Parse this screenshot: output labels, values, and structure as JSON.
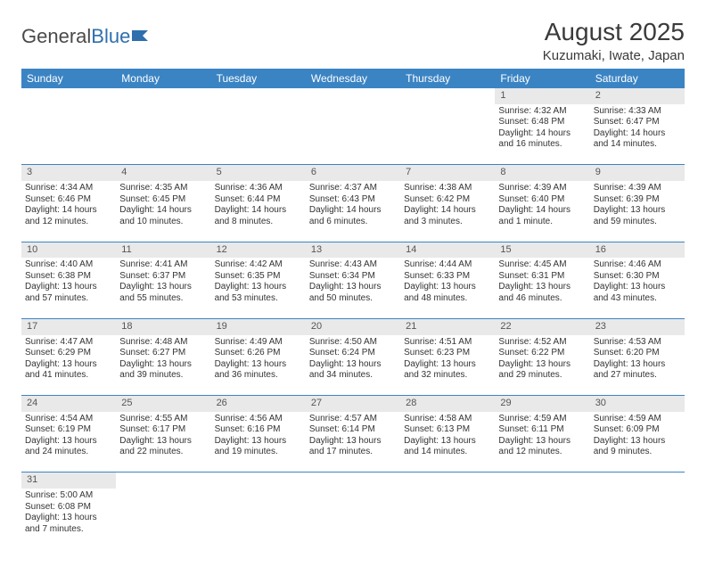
{
  "logo": {
    "text_a": "General",
    "text_b": "Blue"
  },
  "title": "August 2025",
  "location": "Kuzumaki, Iwate, Japan",
  "colors": {
    "header_bg": "#3b84c4",
    "header_fg": "#ffffff",
    "daynum_bg": "#e9e9e9",
    "text": "#333333",
    "rule": "#3b84c4",
    "page_bg": "#ffffff"
  },
  "typography": {
    "title_fontsize": 28,
    "location_fontsize": 15,
    "header_fontsize": 12,
    "cell_fontsize": 10
  },
  "day_headers": [
    "Sunday",
    "Monday",
    "Tuesday",
    "Wednesday",
    "Thursday",
    "Friday",
    "Saturday"
  ],
  "weeks": [
    [
      null,
      null,
      null,
      null,
      null,
      {
        "n": "1",
        "sunrise": "Sunrise: 4:32 AM",
        "sunset": "Sunset: 6:48 PM",
        "day1": "Daylight: 14 hours",
        "day2": "and 16 minutes."
      },
      {
        "n": "2",
        "sunrise": "Sunrise: 4:33 AM",
        "sunset": "Sunset: 6:47 PM",
        "day1": "Daylight: 14 hours",
        "day2": "and 14 minutes."
      }
    ],
    [
      {
        "n": "3",
        "sunrise": "Sunrise: 4:34 AM",
        "sunset": "Sunset: 6:46 PM",
        "day1": "Daylight: 14 hours",
        "day2": "and 12 minutes."
      },
      {
        "n": "4",
        "sunrise": "Sunrise: 4:35 AM",
        "sunset": "Sunset: 6:45 PM",
        "day1": "Daylight: 14 hours",
        "day2": "and 10 minutes."
      },
      {
        "n": "5",
        "sunrise": "Sunrise: 4:36 AM",
        "sunset": "Sunset: 6:44 PM",
        "day1": "Daylight: 14 hours",
        "day2": "and 8 minutes."
      },
      {
        "n": "6",
        "sunrise": "Sunrise: 4:37 AM",
        "sunset": "Sunset: 6:43 PM",
        "day1": "Daylight: 14 hours",
        "day2": "and 6 minutes."
      },
      {
        "n": "7",
        "sunrise": "Sunrise: 4:38 AM",
        "sunset": "Sunset: 6:42 PM",
        "day1": "Daylight: 14 hours",
        "day2": "and 3 minutes."
      },
      {
        "n": "8",
        "sunrise": "Sunrise: 4:39 AM",
        "sunset": "Sunset: 6:40 PM",
        "day1": "Daylight: 14 hours",
        "day2": "and 1 minute."
      },
      {
        "n": "9",
        "sunrise": "Sunrise: 4:39 AM",
        "sunset": "Sunset: 6:39 PM",
        "day1": "Daylight: 13 hours",
        "day2": "and 59 minutes."
      }
    ],
    [
      {
        "n": "10",
        "sunrise": "Sunrise: 4:40 AM",
        "sunset": "Sunset: 6:38 PM",
        "day1": "Daylight: 13 hours",
        "day2": "and 57 minutes."
      },
      {
        "n": "11",
        "sunrise": "Sunrise: 4:41 AM",
        "sunset": "Sunset: 6:37 PM",
        "day1": "Daylight: 13 hours",
        "day2": "and 55 minutes."
      },
      {
        "n": "12",
        "sunrise": "Sunrise: 4:42 AM",
        "sunset": "Sunset: 6:35 PM",
        "day1": "Daylight: 13 hours",
        "day2": "and 53 minutes."
      },
      {
        "n": "13",
        "sunrise": "Sunrise: 4:43 AM",
        "sunset": "Sunset: 6:34 PM",
        "day1": "Daylight: 13 hours",
        "day2": "and 50 minutes."
      },
      {
        "n": "14",
        "sunrise": "Sunrise: 4:44 AM",
        "sunset": "Sunset: 6:33 PM",
        "day1": "Daylight: 13 hours",
        "day2": "and 48 minutes."
      },
      {
        "n": "15",
        "sunrise": "Sunrise: 4:45 AM",
        "sunset": "Sunset: 6:31 PM",
        "day1": "Daylight: 13 hours",
        "day2": "and 46 minutes."
      },
      {
        "n": "16",
        "sunrise": "Sunrise: 4:46 AM",
        "sunset": "Sunset: 6:30 PM",
        "day1": "Daylight: 13 hours",
        "day2": "and 43 minutes."
      }
    ],
    [
      {
        "n": "17",
        "sunrise": "Sunrise: 4:47 AM",
        "sunset": "Sunset: 6:29 PM",
        "day1": "Daylight: 13 hours",
        "day2": "and 41 minutes."
      },
      {
        "n": "18",
        "sunrise": "Sunrise: 4:48 AM",
        "sunset": "Sunset: 6:27 PM",
        "day1": "Daylight: 13 hours",
        "day2": "and 39 minutes."
      },
      {
        "n": "19",
        "sunrise": "Sunrise: 4:49 AM",
        "sunset": "Sunset: 6:26 PM",
        "day1": "Daylight: 13 hours",
        "day2": "and 36 minutes."
      },
      {
        "n": "20",
        "sunrise": "Sunrise: 4:50 AM",
        "sunset": "Sunset: 6:24 PM",
        "day1": "Daylight: 13 hours",
        "day2": "and 34 minutes."
      },
      {
        "n": "21",
        "sunrise": "Sunrise: 4:51 AM",
        "sunset": "Sunset: 6:23 PM",
        "day1": "Daylight: 13 hours",
        "day2": "and 32 minutes."
      },
      {
        "n": "22",
        "sunrise": "Sunrise: 4:52 AM",
        "sunset": "Sunset: 6:22 PM",
        "day1": "Daylight: 13 hours",
        "day2": "and 29 minutes."
      },
      {
        "n": "23",
        "sunrise": "Sunrise: 4:53 AM",
        "sunset": "Sunset: 6:20 PM",
        "day1": "Daylight: 13 hours",
        "day2": "and 27 minutes."
      }
    ],
    [
      {
        "n": "24",
        "sunrise": "Sunrise: 4:54 AM",
        "sunset": "Sunset: 6:19 PM",
        "day1": "Daylight: 13 hours",
        "day2": "and 24 minutes."
      },
      {
        "n": "25",
        "sunrise": "Sunrise: 4:55 AM",
        "sunset": "Sunset: 6:17 PM",
        "day1": "Daylight: 13 hours",
        "day2": "and 22 minutes."
      },
      {
        "n": "26",
        "sunrise": "Sunrise: 4:56 AM",
        "sunset": "Sunset: 6:16 PM",
        "day1": "Daylight: 13 hours",
        "day2": "and 19 minutes."
      },
      {
        "n": "27",
        "sunrise": "Sunrise: 4:57 AM",
        "sunset": "Sunset: 6:14 PM",
        "day1": "Daylight: 13 hours",
        "day2": "and 17 minutes."
      },
      {
        "n": "28",
        "sunrise": "Sunrise: 4:58 AM",
        "sunset": "Sunset: 6:13 PM",
        "day1": "Daylight: 13 hours",
        "day2": "and 14 minutes."
      },
      {
        "n": "29",
        "sunrise": "Sunrise: 4:59 AM",
        "sunset": "Sunset: 6:11 PM",
        "day1": "Daylight: 13 hours",
        "day2": "and 12 minutes."
      },
      {
        "n": "30",
        "sunrise": "Sunrise: 4:59 AM",
        "sunset": "Sunset: 6:09 PM",
        "day1": "Daylight: 13 hours",
        "day2": "and 9 minutes."
      }
    ],
    [
      {
        "n": "31",
        "sunrise": "Sunrise: 5:00 AM",
        "sunset": "Sunset: 6:08 PM",
        "day1": "Daylight: 13 hours",
        "day2": "and 7 minutes."
      },
      null,
      null,
      null,
      null,
      null,
      null
    ]
  ]
}
